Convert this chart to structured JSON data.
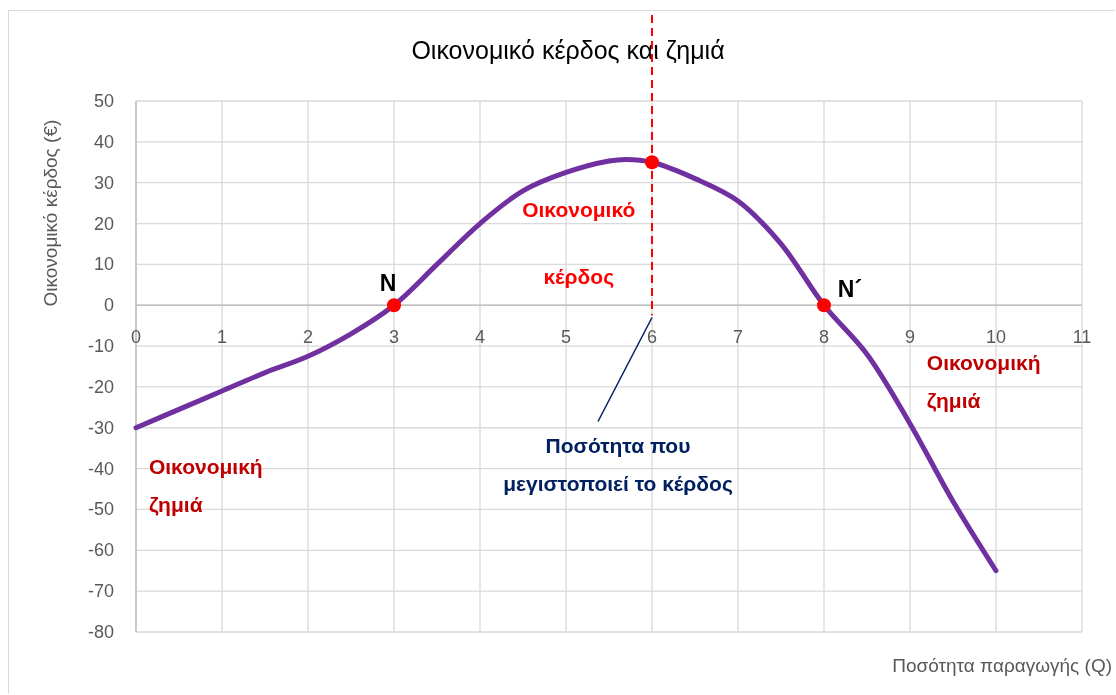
{
  "chart_data": {
    "type": "line",
    "title": "Οικονομικό κέρδος και ζημιά",
    "xlabel": "Ποσότητα παραγωγής (Q)",
    "ylabel": "Οικονομικό κέρδος (€)",
    "xlim": [
      0,
      11
    ],
    "xticks": [
      0,
      1,
      2,
      3,
      4,
      5,
      6,
      7,
      8,
      9,
      10,
      11
    ],
    "ylim": [
      -80,
      50
    ],
    "yticks": [
      -80,
      -70,
      -60,
      -50,
      -40,
      -30,
      -20,
      -10,
      0,
      10,
      20,
      30,
      40,
      50
    ],
    "grid": true,
    "series": [
      {
        "color": "#7030a0",
        "x": [
          0,
          0.5,
          1,
          1.5,
          2,
          2.5,
          3,
          3.5,
          4,
          4.5,
          5,
          5.5,
          5.7,
          6,
          6.5,
          7,
          7.5,
          8,
          8.5,
          9,
          9.5,
          10
        ],
        "values": [
          -30,
          -25.5,
          -21,
          -16.5,
          -12.5,
          -7,
          0,
          10,
          20,
          28,
          32.5,
          35.3,
          35.7,
          35,
          31,
          25.5,
          15,
          0,
          -12,
          -29,
          -48,
          -65
        ]
      },
      {
        "type": "scatter",
        "color": "#ff0000",
        "marker": "circle",
        "x": [
          3,
          6,
          8
        ],
        "values": [
          0,
          35,
          0
        ]
      }
    ],
    "ref_lines": [
      {
        "axis": "x",
        "value": 6,
        "color": "#ff0000",
        "line_style": "dashed"
      }
    ],
    "annotations": [
      {
        "text": "N",
        "x": 3,
        "y": 0
      },
      {
        "text": "N´",
        "x": 8,
        "y": 0
      },
      "Οικονομικό",
      "κέρδος",
      "Οικονομική\nζημιά",
      "Οικονομική\nζημιά",
      {
        "text": "Ποσότητα που\nμεγιστοποιεί το κέρδος",
        "x": 6,
        "y": -3
      }
    ]
  }
}
